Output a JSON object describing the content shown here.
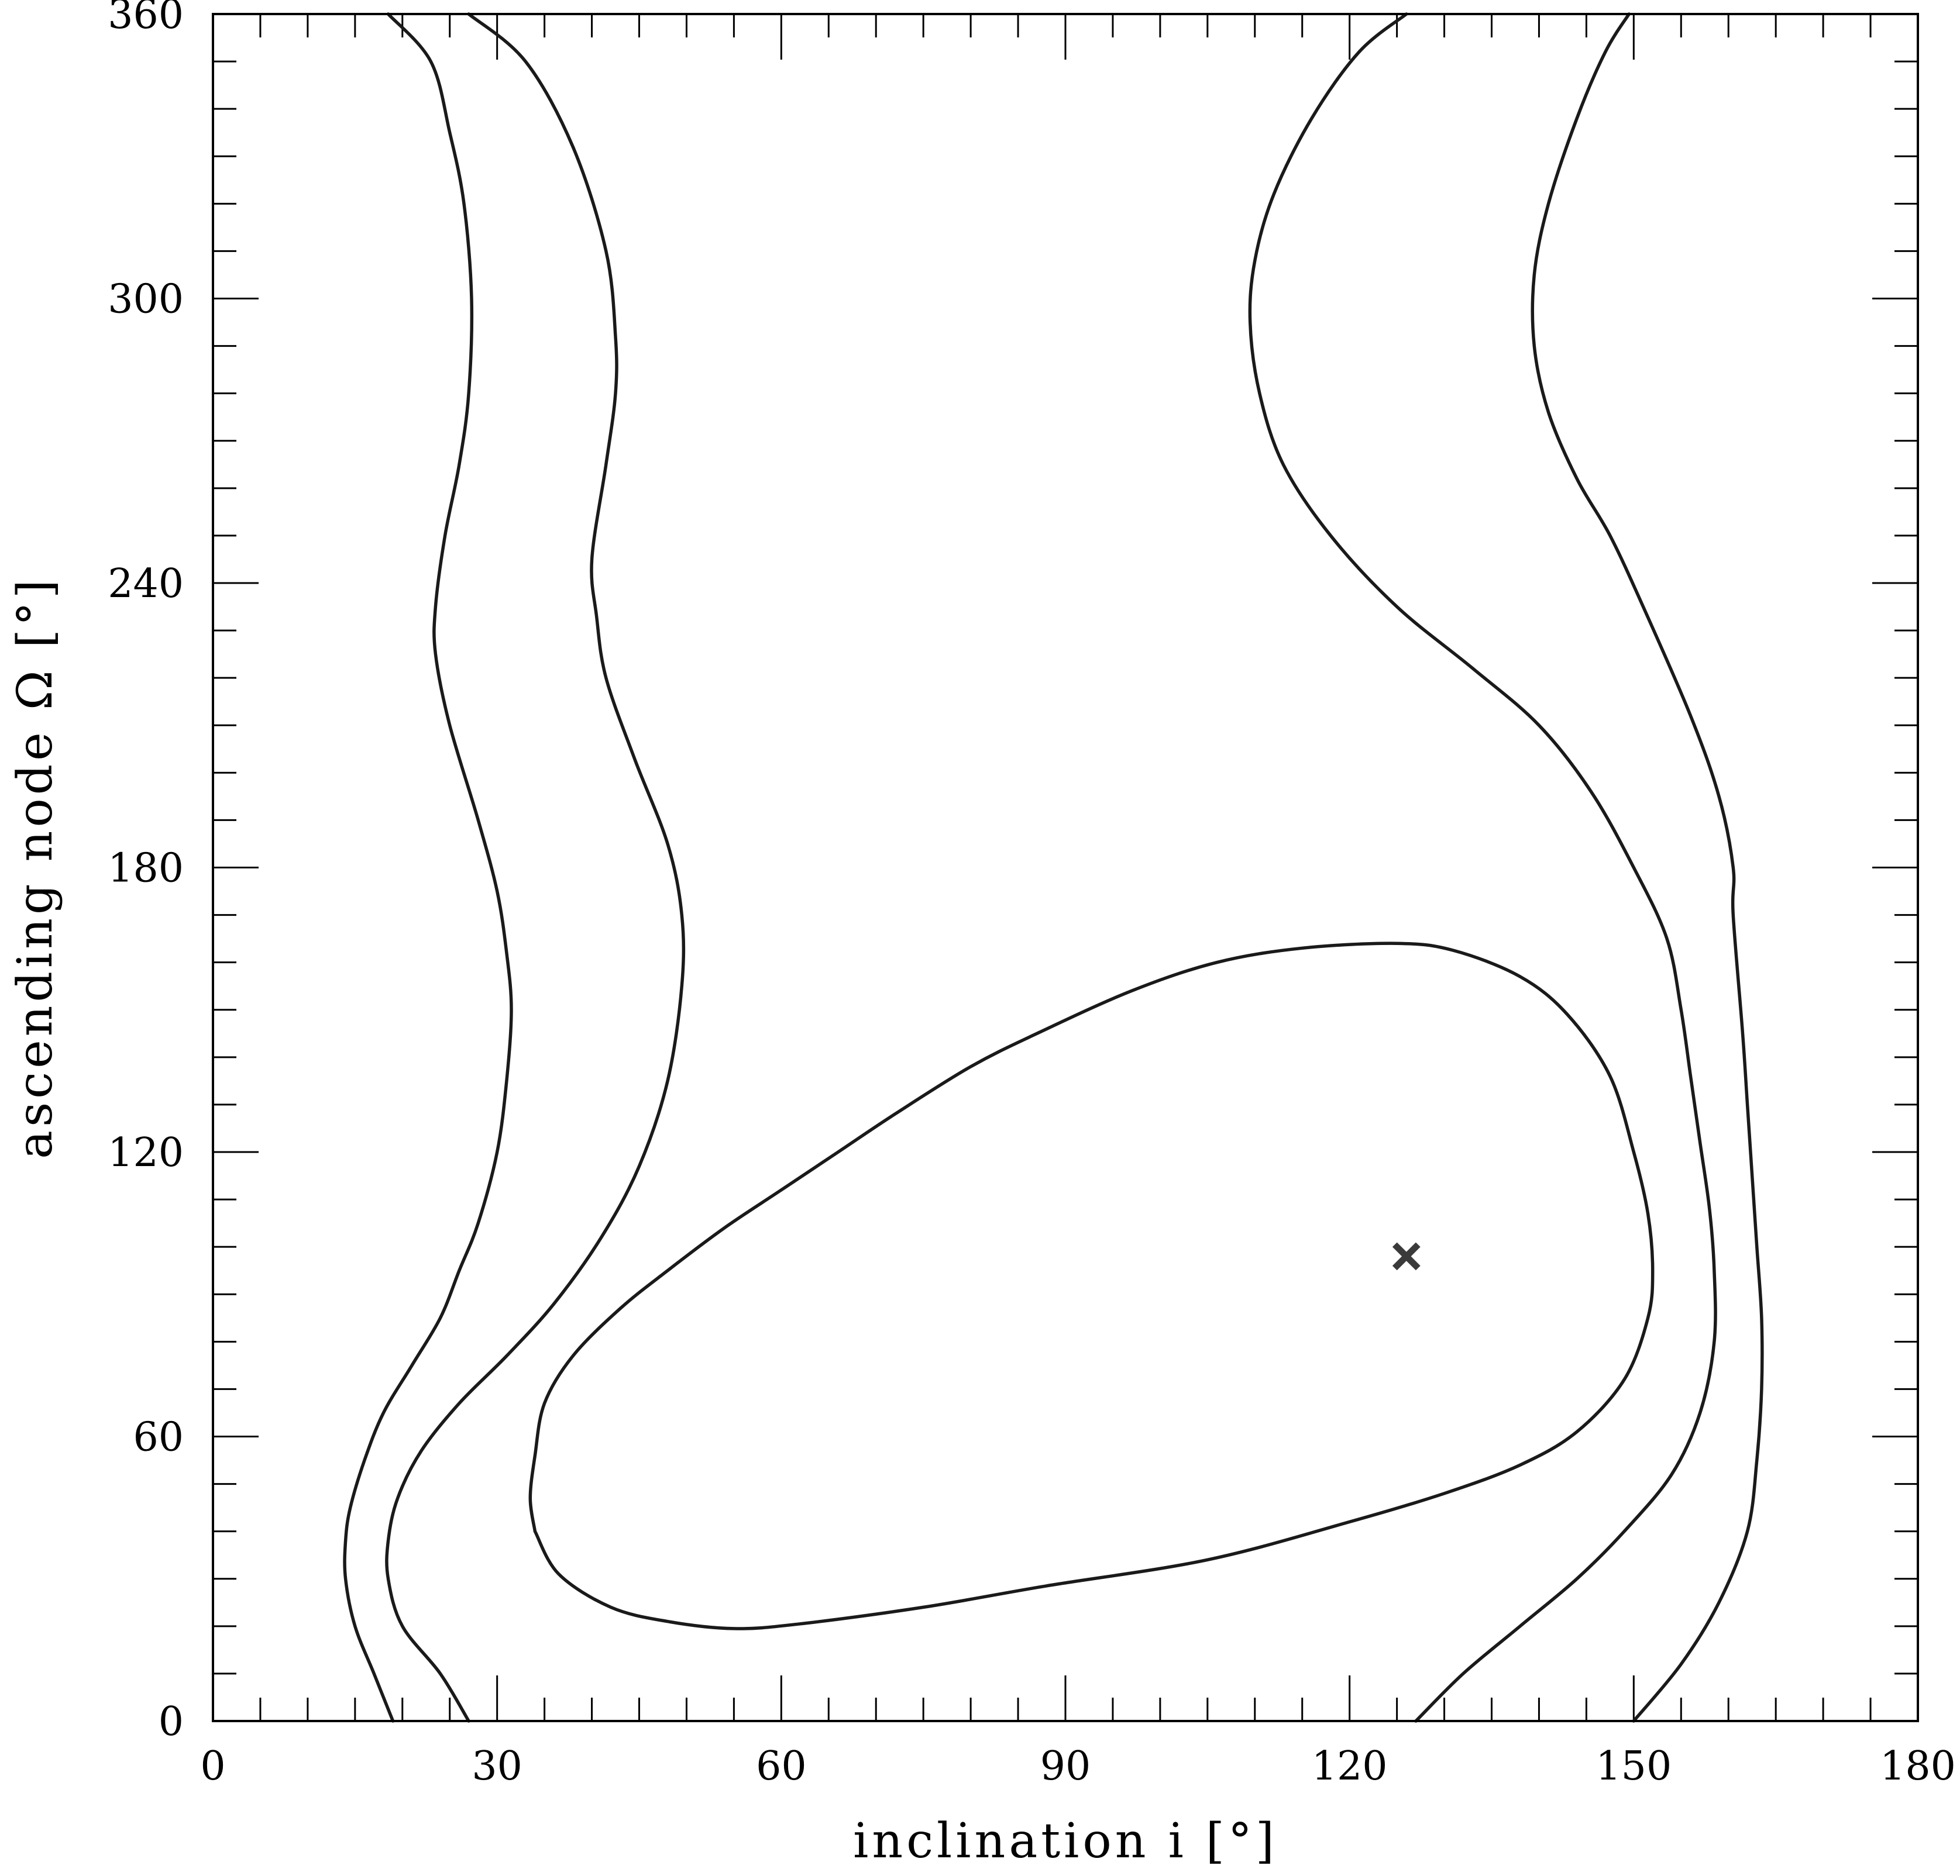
{
  "chart_data": {
    "type": "line",
    "title": "",
    "xlabel": "inclination i [°]",
    "ylabel": "ascending node Ω [°]",
    "xlim": [
      0,
      180
    ],
    "ylim": [
      0,
      360
    ],
    "x_ticks": [
      "0",
      "30",
      "60",
      "90",
      "120",
      "150",
      "180"
    ],
    "y_ticks": [
      "0",
      "60",
      "120",
      "180",
      "240",
      "300",
      "360"
    ],
    "grid": false,
    "legend": "none",
    "line_color": "#1a1a1a",
    "marker_color": "#3a3a3a",
    "best_fit": {
      "x": 126,
      "y": 98
    },
    "series": [
      {
        "points": [
          [
            19,
            0
          ],
          [
            17,
            10
          ],
          [
            15,
            20
          ],
          [
            14,
            30
          ],
          [
            14,
            38
          ],
          [
            14.5,
            45
          ],
          [
            16,
            55
          ],
          [
            18,
            65
          ],
          [
            21,
            75
          ],
          [
            24,
            85
          ],
          [
            26,
            95
          ],
          [
            28,
            105
          ],
          [
            30,
            120
          ],
          [
            31,
            135
          ],
          [
            31.5,
            150
          ],
          [
            31,
            162
          ],
          [
            30,
            175
          ],
          [
            28,
            190
          ],
          [
            25,
            210
          ],
          [
            23.5,
            225
          ],
          [
            23.5,
            235
          ],
          [
            24.5,
            250
          ],
          [
            26,
            265
          ],
          [
            27,
            280
          ],
          [
            27.3,
            300
          ],
          [
            26.5,
            320
          ],
          [
            25,
            335
          ],
          [
            23,
            350
          ],
          [
            18.5,
            360
          ]
        ]
      },
      {
        "points": [
          [
            27,
            0
          ],
          [
            24,
            10
          ],
          [
            20,
            20
          ],
          [
            18.5,
            30
          ],
          [
            18.5,
            38
          ],
          [
            19.5,
            47
          ],
          [
            22,
            57
          ],
          [
            26,
            67
          ],
          [
            31,
            77
          ],
          [
            36,
            88
          ],
          [
            41,
            102
          ],
          [
            45,
            117
          ],
          [
            48,
            135
          ],
          [
            49.5,
            155
          ],
          [
            49.5,
            170
          ],
          [
            48,
            185
          ],
          [
            44.5,
            203
          ],
          [
            41.5,
            220
          ],
          [
            40.5,
            233
          ],
          [
            40,
            245
          ],
          [
            41.5,
            265
          ],
          [
            42.5,
            280
          ],
          [
            42.5,
            292
          ],
          [
            41.5,
            310
          ],
          [
            38,
            332
          ],
          [
            33,
            350
          ],
          [
            27,
            360
          ]
        ]
      },
      {
        "points": [
          [
            127,
            0
          ],
          [
            132,
            10
          ],
          [
            138,
            20
          ],
          [
            144,
            30
          ],
          [
            149,
            40
          ],
          [
            154,
            52
          ],
          [
            157,
            65
          ],
          [
            158.5,
            80
          ],
          [
            158.5,
            95
          ],
          [
            158,
            108
          ],
          [
            157,
            122
          ],
          [
            156,
            136
          ],
          [
            155,
            150
          ],
          [
            153.5,
            165
          ],
          [
            150,
            180
          ],
          [
            145.5,
            196
          ],
          [
            140,
            210
          ],
          [
            133,
            222
          ],
          [
            125,
            235
          ],
          [
            118,
            250
          ],
          [
            113,
            265
          ],
          [
            110.5,
            280
          ],
          [
            109.5,
            295
          ],
          [
            110,
            308
          ],
          [
            112,
            322
          ],
          [
            116,
            338
          ],
          [
            121,
            352
          ],
          [
            126,
            360
          ]
        ]
      },
      {
        "points": [
          [
            150,
            0
          ],
          [
            155,
            12
          ],
          [
            159,
            25
          ],
          [
            162,
            40
          ],
          [
            163,
            55
          ],
          [
            163.5,
            70
          ],
          [
            163.5,
            85
          ],
          [
            163,
            100
          ],
          [
            162.5,
            115
          ],
          [
            162,
            130
          ],
          [
            161.5,
            145
          ],
          [
            160.5,
            170
          ],
          [
            160.5,
            180
          ],
          [
            159,
            195
          ],
          [
            156,
            212
          ],
          [
            151,
            235
          ],
          [
            147.5,
            250
          ],
          [
            144,
            262
          ],
          [
            141,
            276
          ],
          [
            139.5,
            290
          ],
          [
            139.5,
            305
          ],
          [
            141,
            320
          ],
          [
            144,
            338
          ],
          [
            147,
            352
          ],
          [
            149.5,
            360
          ]
        ]
      },
      {
        "points": [
          [
            34,
            40
          ],
          [
            36.5,
            31
          ],
          [
            42,
            24
          ],
          [
            48,
            21
          ],
          [
            55,
            19.5
          ],
          [
            62,
            20.5
          ],
          [
            75,
            24
          ],
          [
            88,
            28.5
          ],
          [
            105,
            34
          ],
          [
            120,
            42
          ],
          [
            130,
            48
          ],
          [
            138,
            54
          ],
          [
            144,
            61
          ],
          [
            149,
            72
          ],
          [
            151.5,
            85
          ],
          [
            152,
            95
          ],
          [
            151.5,
            107
          ],
          [
            150,
            120
          ],
          [
            147.5,
            136
          ],
          [
            143,
            149
          ],
          [
            138,
            157
          ],
          [
            131,
            162.5
          ],
          [
            125,
            164
          ],
          [
            115,
            163
          ],
          [
            106,
            160
          ],
          [
            97,
            154
          ],
          [
            87,
            145
          ],
          [
            80,
            138
          ],
          [
            72,
            128
          ],
          [
            66,
            120
          ],
          [
            60,
            112
          ],
          [
            54,
            104
          ],
          [
            48,
            95
          ],
          [
            43,
            87
          ],
          [
            38,
            77
          ],
          [
            35,
            67
          ],
          [
            34,
            56
          ],
          [
            33.5,
            47
          ],
          [
            34,
            40
          ]
        ]
      }
    ]
  }
}
